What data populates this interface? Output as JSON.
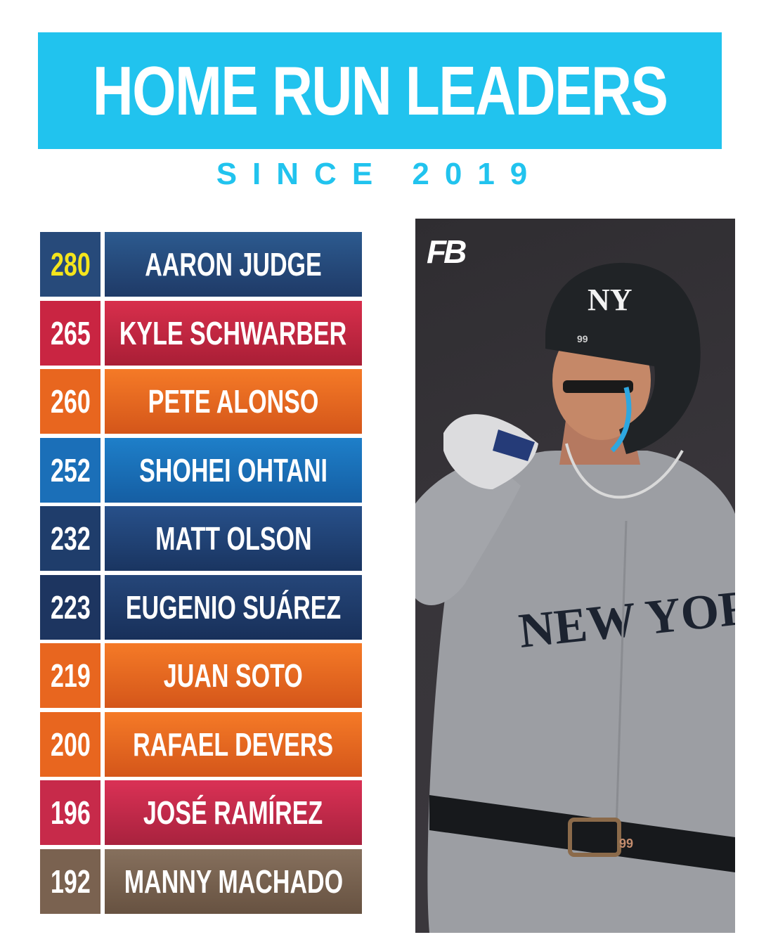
{
  "header": {
    "title": "HOME RUN LEADERS",
    "subtitle": "SINCE 2019"
  },
  "leaders": [
    {
      "hr": "280",
      "name": "AARON JUDGE",
      "num_text_color": "#f4e51c",
      "num_bg": "#274a7a",
      "name_bg_top": "#2c5a8f",
      "name_bg_bottom": "#1f3a67"
    },
    {
      "hr": "265",
      "name": "KYLE SCHWARBER",
      "num_text_color": "#ffffff",
      "num_bg": "#c92542",
      "name_bg_top": "#d82f4c",
      "name_bg_bottom": "#a91e36"
    },
    {
      "hr": "260",
      "name": "PETE ALONSO",
      "num_text_color": "#ffffff",
      "num_bg": "#e8661f",
      "name_bg_top": "#f57a27",
      "name_bg_bottom": "#d4561a"
    },
    {
      "hr": "252",
      "name": "SHOHEI OHTANI",
      "num_text_color": "#ffffff",
      "num_bg": "#1b6fb8",
      "name_bg_top": "#1e7fc9",
      "name_bg_bottom": "#155ea3"
    },
    {
      "hr": "232",
      "name": "MATT OLSON",
      "num_text_color": "#ffffff",
      "num_bg": "#1f3d6b",
      "name_bg_top": "#27508a",
      "name_bg_bottom": "#1a3561"
    },
    {
      "hr": "223",
      "name": "EUGENIO SUÁREZ",
      "num_text_color": "#ffffff",
      "num_bg": "#1d3560",
      "name_bg_top": "#254679",
      "name_bg_bottom": "#18305a"
    },
    {
      "hr": "219",
      "name": "JUAN SOTO",
      "num_text_color": "#ffffff",
      "num_bg": "#e8661f",
      "name_bg_top": "#f57a27",
      "name_bg_bottom": "#d4561a"
    },
    {
      "hr": "200",
      "name": "RAFAEL DEVERS",
      "num_text_color": "#ffffff",
      "num_bg": "#e8661f",
      "name_bg_top": "#f57a27",
      "name_bg_bottom": "#d4561a"
    },
    {
      "hr": "196",
      "name": "JOSÉ RAMÍREZ",
      "num_text_color": "#ffffff",
      "num_bg": "#c72a4a",
      "name_bg_top": "#da3155",
      "name_bg_bottom": "#a8223e"
    },
    {
      "hr": "192",
      "name": "MANNY MACHADO",
      "num_text_color": "#ffffff",
      "num_bg": "#7a6250",
      "name_bg_top": "#86705d",
      "name_bg_bottom": "#675241"
    }
  ],
  "photo": {
    "logo_text": "FB",
    "helmet_logo_text": "NY",
    "helmet_number_text": "99",
    "jersey_text": "NEW YORK",
    "belt_number_text": "99"
  },
  "colors": {
    "accent": "#21c3ee",
    "background": "#ffffff"
  }
}
